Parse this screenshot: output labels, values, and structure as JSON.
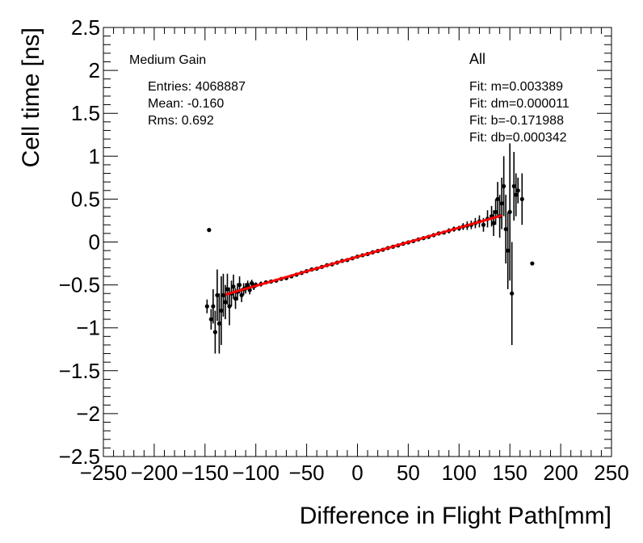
{
  "chart_data": {
    "type": "scatter",
    "xlabel": "Difference in Flight Path[mm]",
    "ylabel": "Cell time [ns]",
    "xlim": [
      -250,
      250
    ],
    "ylim": [
      -2.5,
      2.5
    ],
    "x_ticks": [
      -250,
      -200,
      -150,
      -100,
      -50,
      0,
      50,
      100,
      150,
      200,
      250
    ],
    "x_tick_labels": [
      "−250",
      "−200",
      "−150",
      "−100",
      "−50",
      "0",
      "50",
      "100",
      "150",
      "200",
      "250"
    ],
    "y_ticks": [
      -2.5,
      -2,
      -1.5,
      -1,
      -0.5,
      0,
      0.5,
      1,
      1.5,
      2,
      2.5
    ],
    "y_tick_labels": [
      "−2.5",
      "−2",
      "−1.5",
      "−1",
      "−0.5",
      "0",
      "0.5",
      "1",
      "1.5",
      "2",
      "2.5"
    ],
    "grid": false,
    "legend": "none",
    "colors": {
      "points": "#000000",
      "fit_line": "#ff0000"
    },
    "annotations": {
      "gain": "Medium Gain",
      "entries": "Entries: 4068887",
      "mean": "Mean: -0.160",
      "rms": "Rms: 0.692",
      "selection": "All",
      "fit_m": "Fit: m=0.003389",
      "fit_dm": "Fit: dm=0.000011",
      "fit_b": "Fit: b=-0.171988",
      "fit_db": "Fit: db=0.000342"
    },
    "fit": {
      "m": 0.003389,
      "b": -0.171988,
      "x_range": [
        -130,
        142
      ]
    },
    "series": [
      {
        "points": [
          [
            -148,
            -0.75,
            0.08
          ],
          [
            -146,
            0.14,
            0
          ],
          [
            -144,
            -0.9,
            0.12
          ],
          [
            -142,
            -0.75,
            0.2
          ],
          [
            -140,
            -1.05,
            0.25
          ],
          [
            -138,
            -0.62,
            0.3
          ],
          [
            -136,
            -0.95,
            0.35
          ],
          [
            -134,
            -0.8,
            0.4
          ],
          [
            -132,
            -0.62,
            0.25
          ],
          [
            -130,
            -0.7,
            0.2
          ],
          [
            -128,
            -0.55,
            0.18
          ],
          [
            -126,
            -0.75,
            0.22
          ],
          [
            -124,
            -0.6,
            0.15
          ],
          [
            -122,
            -0.52,
            0.14
          ],
          [
            -120,
            -0.66,
            0.12
          ],
          [
            -118,
            -0.58,
            0.1
          ],
          [
            -116,
            -0.5,
            0.1
          ],
          [
            -114,
            -0.62,
            0.08
          ],
          [
            -112,
            -0.55,
            0.07
          ],
          [
            -110,
            -0.54,
            0.06
          ],
          [
            -108,
            -0.5,
            0.05
          ],
          [
            -106,
            -0.56,
            0.05
          ],
          [
            -104,
            -0.48,
            0.04
          ],
          [
            -102,
            -0.52,
            0.04
          ],
          [
            -100,
            -0.5,
            0.03
          ],
          [
            -95,
            -0.49,
            0.03
          ],
          [
            -90,
            -0.47,
            0.02
          ],
          [
            -85,
            -0.46,
            0.02
          ],
          [
            -80,
            -0.45,
            0.02
          ],
          [
            -75,
            -0.43,
            0.02
          ],
          [
            -70,
            -0.42,
            0.02
          ],
          [
            -65,
            -0.4,
            0.01
          ],
          [
            -60,
            -0.38,
            0.01
          ],
          [
            -55,
            -0.36,
            0.01
          ],
          [
            -50,
            -0.34,
            0.01
          ],
          [
            -45,
            -0.32,
            0.01
          ],
          [
            -40,
            -0.31,
            0.01
          ],
          [
            -35,
            -0.29,
            0.01
          ],
          [
            -30,
            -0.27,
            0.01
          ],
          [
            -25,
            -0.26,
            0.01
          ],
          [
            -20,
            -0.24,
            0.01
          ],
          [
            -15,
            -0.22,
            0.01
          ],
          [
            -10,
            -0.21,
            0.01
          ],
          [
            -5,
            -0.19,
            0.01
          ],
          [
            0,
            -0.17,
            0.01
          ],
          [
            5,
            -0.155,
            0.01
          ],
          [
            10,
            -0.14,
            0.01
          ],
          [
            15,
            -0.12,
            0.01
          ],
          [
            20,
            -0.105,
            0.01
          ],
          [
            25,
            -0.09,
            0.01
          ],
          [
            30,
            -0.07,
            0.01
          ],
          [
            35,
            -0.055,
            0.01
          ],
          [
            40,
            -0.04,
            0.01
          ],
          [
            45,
            -0.02,
            0.01
          ],
          [
            50,
            -0.005,
            0.01
          ],
          [
            55,
            0.01,
            0.01
          ],
          [
            60,
            0.03,
            0.01
          ],
          [
            65,
            0.045,
            0.01
          ],
          [
            70,
            0.06,
            0.02
          ],
          [
            75,
            0.08,
            0.02
          ],
          [
            80,
            0.1,
            0.02
          ],
          [
            85,
            0.11,
            0.02
          ],
          [
            90,
            0.13,
            0.03
          ],
          [
            95,
            0.15,
            0.03
          ],
          [
            100,
            0.16,
            0.03
          ],
          [
            104,
            0.18,
            0.04
          ],
          [
            108,
            0.19,
            0.05
          ],
          [
            112,
            0.2,
            0.05
          ],
          [
            116,
            0.22,
            0.06
          ],
          [
            120,
            0.24,
            0.07
          ],
          [
            124,
            0.2,
            0.08
          ],
          [
            128,
            0.27,
            0.1
          ],
          [
            132,
            0.3,
            0.12
          ],
          [
            134,
            0.22,
            0.15
          ],
          [
            136,
            0.35,
            0.15
          ],
          [
            138,
            0.5,
            0.2
          ],
          [
            140,
            0.3,
            0.25
          ],
          [
            142,
            0.45,
            0.3
          ],
          [
            144,
            0.65,
            0.35
          ],
          [
            146,
            0.15,
            0.4
          ],
          [
            148,
            -0.1,
            0.45
          ],
          [
            150,
            0.35,
            0.8
          ],
          [
            152,
            -0.6,
            0.6
          ],
          [
            154,
            0.65,
            0.4
          ],
          [
            156,
            0.55,
            0.25
          ],
          [
            158,
            0.6,
            0.15
          ],
          [
            162,
            0.5,
            0.3
          ],
          [
            172,
            -0.25,
            0
          ]
        ]
      }
    ]
  }
}
